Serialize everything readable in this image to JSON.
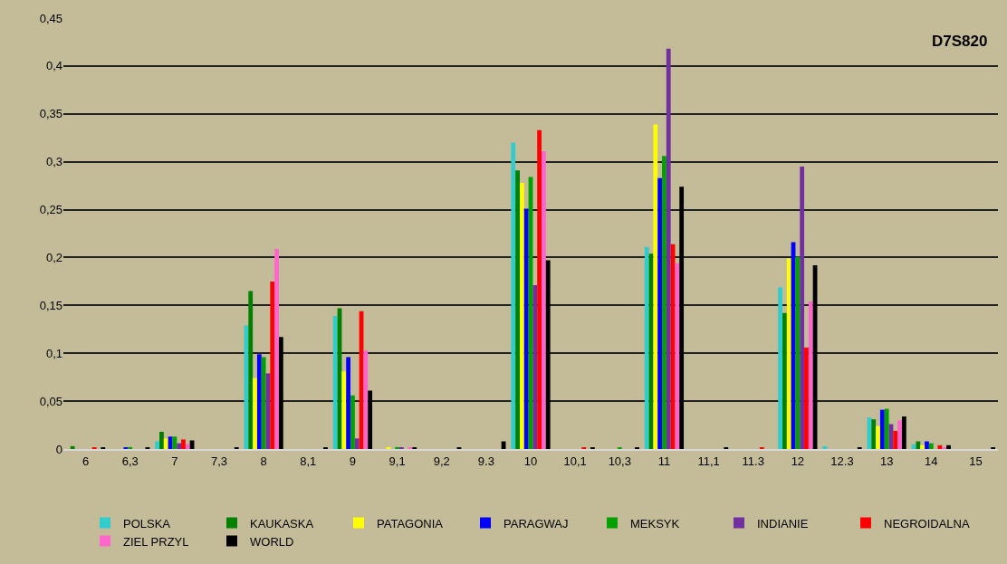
{
  "chart_data": {
    "type": "bar",
    "title": "D7S820",
    "categories": [
      "6",
      "6,3",
      "7",
      "7,3",
      "8",
      "8,1",
      "9",
      "9,1",
      "9,2",
      "9.3",
      "10",
      "10,1",
      "10,3",
      "11",
      "11,1",
      "11.3",
      "12",
      "12.3",
      "13",
      "14",
      "15"
    ],
    "series": [
      {
        "name": "POLSKA",
        "color": "#33cccc",
        "values": [
          0,
          0,
          0.008,
          0,
          0.129,
          0,
          0.139,
          0,
          0,
          0,
          0.32,
          0,
          0,
          0.211,
          0,
          0,
          0.169,
          0.003,
          0.033,
          0.005,
          0
        ]
      },
      {
        "name": "KAUKASKA",
        "color": "#008000",
        "values": [
          0.003,
          0,
          0.018,
          0,
          0.165,
          0,
          0.147,
          0,
          0,
          0,
          0.291,
          0,
          0,
          0.204,
          0,
          0,
          0.142,
          0,
          0.031,
          0.008,
          0
        ]
      },
      {
        "name": "PATAGONIA",
        "color": "#ffff00",
        "values": [
          0,
          0,
          0.011,
          0,
          0.074,
          0,
          0.081,
          0.002,
          0,
          0,
          0.278,
          0,
          0,
          0.339,
          0,
          0,
          0.199,
          0,
          0.024,
          0.004,
          0
        ]
      },
      {
        "name": "PARAGWAJ",
        "color": "#0000ff",
        "values": [
          0,
          0.001,
          0.013,
          0,
          0.099,
          0,
          0.096,
          0,
          0,
          0,
          0.251,
          0,
          0,
          0.283,
          0,
          0,
          0.216,
          0,
          0.041,
          0.008,
          0
        ]
      },
      {
        "name": "MEKSYK",
        "color": "#00a000",
        "values": [
          0,
          0.002,
          0.013,
          0,
          0.096,
          0,
          0.056,
          0.002,
          0,
          0,
          0.284,
          0,
          0.001,
          0.306,
          0,
          0,
          0.201,
          0,
          0.042,
          0.006,
          0
        ]
      },
      {
        "name": "INDIANIE",
        "color": "#7030a0",
        "values": [
          0,
          0,
          0.006,
          0,
          0.079,
          0,
          0.011,
          0.001,
          0,
          0,
          0.171,
          0,
          0,
          0.418,
          0,
          0,
          0.295,
          0,
          0.026,
          0,
          0
        ]
      },
      {
        "name": "NEGROIDALNA",
        "color": "#ff0000",
        "values": [
          0.001,
          0,
          0.01,
          0,
          0.175,
          0,
          0.144,
          0,
          0,
          0,
          0.333,
          0.001,
          0,
          0.214,
          0,
          0.001,
          0.106,
          0,
          0.019,
          0.004,
          0
        ]
      },
      {
        "name": "ZIEL PRZYL",
        "color": "#ff66cc",
        "values": [
          0,
          0,
          0.005,
          0,
          0.209,
          0,
          0.103,
          0.001,
          0,
          0,
          0.311,
          0,
          0,
          0.194,
          0,
          0,
          0.154,
          0,
          0.03,
          0.002,
          0
        ]
      },
      {
        "name": "WORLD",
        "color": "#000000",
        "values": [
          0.001,
          0.001,
          0.009,
          0.001,
          0.117,
          0.001,
          0.061,
          0.001,
          0.001,
          0.008,
          0.197,
          0.001,
          0.001,
          0.274,
          0.001,
          0,
          0.192,
          0.001,
          0.034,
          0.004,
          0.001
        ]
      }
    ],
    "ylim": [
      0,
      0.45
    ],
    "yticks": [
      {
        "value": 0,
        "label": "0"
      },
      {
        "value": 0.05,
        "label": "0,05"
      },
      {
        "value": 0.1,
        "label": "0,1"
      },
      {
        "value": 0.15,
        "label": "0,15"
      },
      {
        "value": 0.2,
        "label": "0,2"
      },
      {
        "value": 0.25,
        "label": "0,25"
      },
      {
        "value": 0.3,
        "label": "0,3"
      },
      {
        "value": 0.35,
        "label": "0,35"
      },
      {
        "value": 0.4,
        "label": "0,4"
      },
      {
        "value": 0.45,
        "label": "0,45"
      }
    ],
    "grid": "y",
    "legend": "bottom"
  }
}
